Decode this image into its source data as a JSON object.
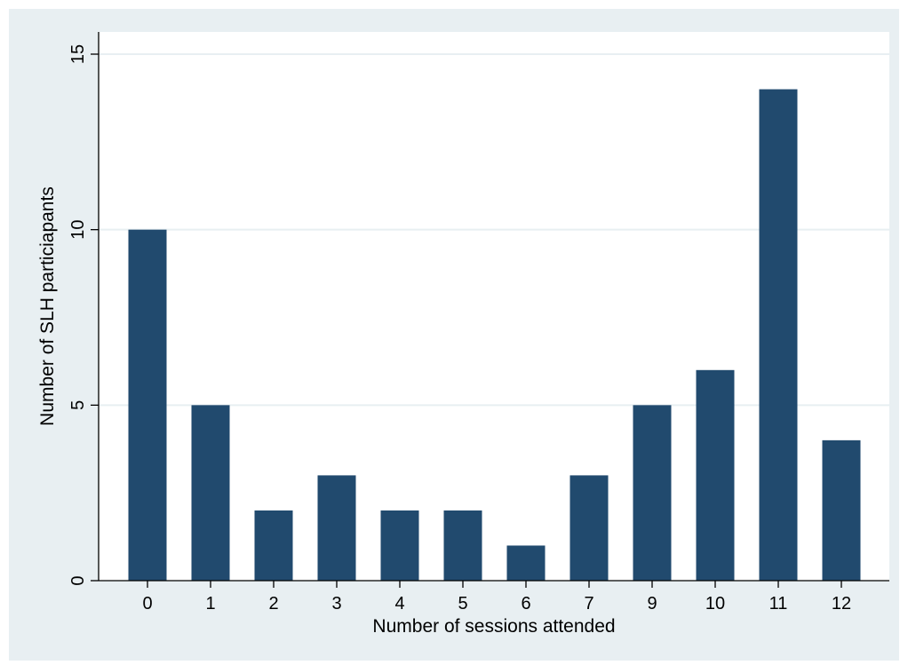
{
  "chart_data": {
    "type": "bar",
    "categories": [
      "0",
      "1",
      "2",
      "3",
      "4",
      "5",
      "6",
      "7",
      "9",
      "10",
      "11",
      "12"
    ],
    "values": [
      10,
      5,
      2,
      3,
      2,
      2,
      1,
      3,
      5,
      6,
      14,
      4
    ],
    "xlabel": "Number of sessions attended",
    "ylabel": "Number of SLH particiapants",
    "ylim": [
      0,
      15
    ],
    "yticks": [
      0,
      5,
      10,
      15
    ],
    "grid": true,
    "colors": {
      "bar": "#214a6e",
      "outer_background": "#e8eff2",
      "plot_background": "#ffffff",
      "gridline": "#e8eff2",
      "axis": "#000000"
    }
  }
}
